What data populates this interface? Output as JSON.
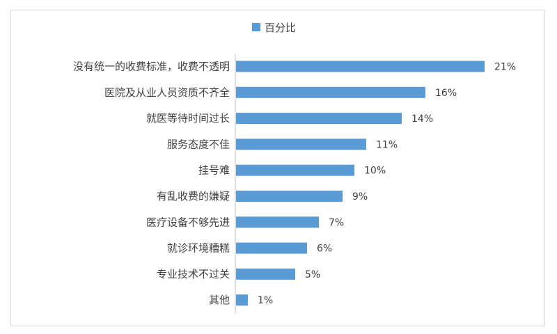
{
  "chart_data": {
    "type": "bar",
    "orientation": "horizontal",
    "legend_position": "top",
    "grid": false,
    "xlim": [
      0,
      21
    ],
    "series": [
      {
        "name": "百分比",
        "color": "#5B9BD5"
      }
    ],
    "categories": [
      "没有统一的收费标准，收费不透明",
      "医院及从业人员资质不齐全",
      "就医等待时间过长",
      "服务态度不佳",
      "挂号难",
      "有乱收费的嫌疑",
      "医疗设备不够先进",
      "就诊环境糟糕",
      "专业技术不过关",
      "其他"
    ],
    "values": [
      21,
      16,
      14,
      11,
      10,
      9,
      7,
      6,
      5,
      1
    ],
    "value_labels": [
      "21%",
      "16%",
      "14%",
      "11%",
      "10%",
      "9%",
      "7%",
      "6%",
      "5%",
      "1%"
    ]
  }
}
